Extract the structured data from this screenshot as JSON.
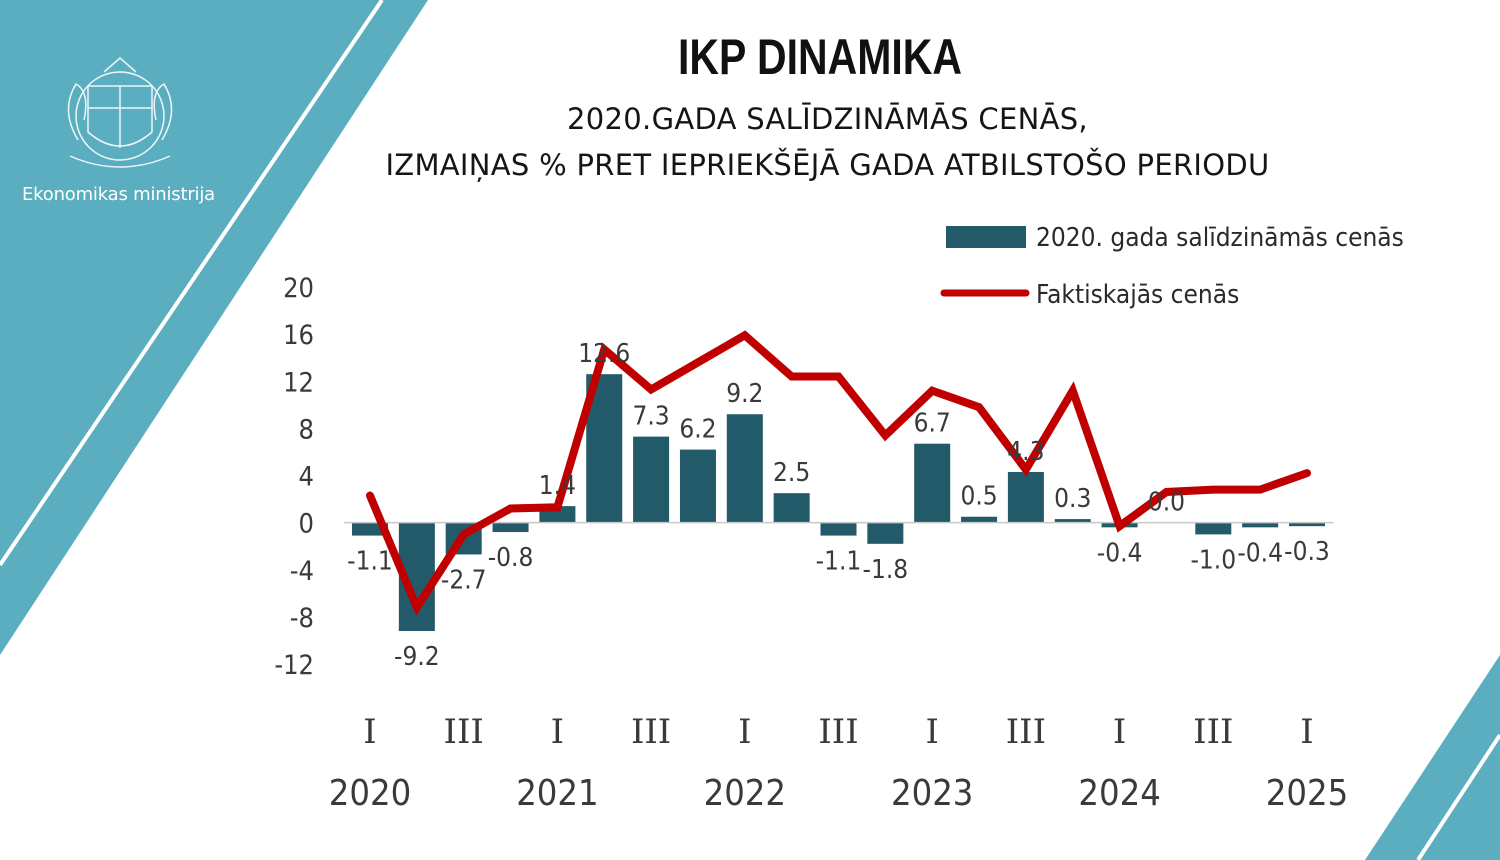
{
  "branding": {
    "org_name": "Ekonomikas ministrija",
    "logo_icon": "latvian-coat-of-arms-icon",
    "accent_color": "#5aaebf"
  },
  "chart_data": {
    "type": "bar",
    "title": "IKP DINAMIKA",
    "subtitle_lines": [
      "2020.GADA SALĪDZINĀMĀS CENĀS,",
      "IZMAIŅAS % PRET IEPRIEKŠĒJĀ GADA ATBILSTOŠO PERIODU"
    ],
    "ylim": [
      -12,
      20
    ],
    "yticks": [
      20,
      16,
      12,
      8,
      4,
      0,
      -4,
      -8,
      -12
    ],
    "quarter_labels": [
      "I",
      "",
      "III",
      "",
      "I",
      "",
      "III",
      "",
      "I",
      "",
      "III",
      "",
      "I",
      "",
      "III",
      "",
      "I",
      "",
      "III",
      "",
      "I"
    ],
    "year_labels": [
      "2020",
      "",
      "",
      "",
      "2021",
      "",
      "",
      "",
      "2022",
      "",
      "",
      "",
      "2023",
      "",
      "",
      "",
      "2024",
      "",
      "",
      "",
      "2025"
    ],
    "legend": {
      "position": "top-right"
    },
    "series": [
      {
        "name": "2020. gada salīdzināmās cenās",
        "type": "bar",
        "color": "#225a69",
        "values": [
          -1.1,
          -9.2,
          -2.7,
          -0.8,
          1.4,
          12.6,
          7.3,
          6.2,
          9.2,
          2.5,
          -1.1,
          -1.8,
          6.7,
          0.5,
          4.3,
          0.3,
          -0.4,
          0.0,
          -1.0,
          -0.4,
          -0.3
        ],
        "labels": [
          "-1.1",
          "-9.2",
          "-2.7",
          "-0.8",
          "1.4",
          "12.6",
          "7.3",
          "6.2",
          "9.2",
          "2.5",
          "-1.1",
          "-1.8",
          "6.7",
          "0.5",
          "4.3",
          "0.3",
          "-0.4",
          "0.0",
          "-1.0",
          "-0.4",
          "-0.3"
        ]
      },
      {
        "name": "Faktiskajās cenās",
        "type": "line",
        "color": "#c00000",
        "values": [
          2.3,
          -7.2,
          -1.0,
          1.2,
          1.3,
          14.7,
          11.3,
          13.6,
          15.9,
          12.4,
          12.4,
          7.4,
          11.2,
          9.8,
          4.5,
          11.2,
          -0.3,
          2.6,
          2.8,
          2.8,
          4.2
        ]
      }
    ]
  }
}
